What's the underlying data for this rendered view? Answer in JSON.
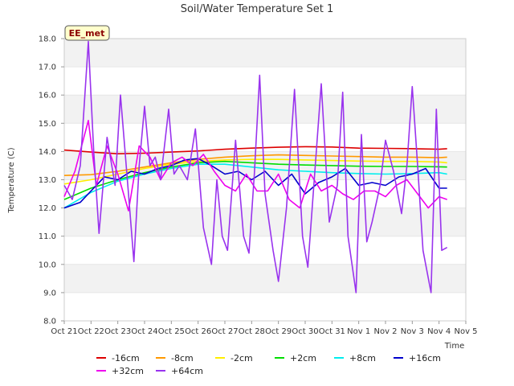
{
  "chart_data": {
    "type": "line",
    "title": "Soil/Water Temperature Set 1",
    "xlabel": "Time",
    "ylabel": "Temperature (C)",
    "badge": "EE_met",
    "x_ticks": [
      "Oct 21",
      "Oct 22",
      "Oct 23",
      "Oct 24",
      "Oct 25",
      "Oct 26",
      "Oct 27",
      "Oct 28",
      "Oct 29",
      "Oct 30",
      "Oct 31",
      "Nov 1",
      "Nov 2",
      "Nov 3",
      "Nov 4",
      "Nov 5"
    ],
    "y_ticks": [
      "8.0",
      "9.0",
      "10.0",
      "11.0",
      "12.0",
      "13.0",
      "14.0",
      "15.0",
      "16.0",
      "17.0",
      "18.0"
    ],
    "xlim": [
      0,
      15
    ],
    "ylim": [
      8,
      18
    ],
    "grid": "horizontal alternating bands",
    "legend_position": "bottom",
    "series": [
      {
        "name": "-16cm",
        "color": "#dd0000",
        "points": [
          [
            0,
            14.05
          ],
          [
            1,
            13.98
          ],
          [
            2,
            13.92
          ],
          [
            3,
            13.94
          ],
          [
            4,
            13.98
          ],
          [
            5,
            14.02
          ],
          [
            6,
            14.08
          ],
          [
            7,
            14.12
          ],
          [
            8,
            14.15
          ],
          [
            9,
            14.17
          ],
          [
            10,
            14.16
          ],
          [
            11,
            14.12
          ],
          [
            12,
            14.11
          ],
          [
            13,
            14.1
          ],
          [
            14,
            14.08
          ],
          [
            14.3,
            14.1
          ]
        ]
      },
      {
        "name": "-8cm",
        "color": "#ff9900",
        "points": [
          [
            0,
            13.15
          ],
          [
            1,
            13.18
          ],
          [
            2,
            13.3
          ],
          [
            3,
            13.45
          ],
          [
            4,
            13.6
          ],
          [
            5,
            13.72
          ],
          [
            6,
            13.8
          ],
          [
            7,
            13.85
          ],
          [
            8,
            13.88
          ],
          [
            9,
            13.86
          ],
          [
            10,
            13.84
          ],
          [
            11,
            13.82
          ],
          [
            12,
            13.8
          ],
          [
            13,
            13.8
          ],
          [
            14,
            13.78
          ],
          [
            14.3,
            13.8
          ]
        ]
      },
      {
        "name": "-2cm",
        "color": "#ffee00",
        "points": [
          [
            0,
            12.85
          ],
          [
            1,
            13.0
          ],
          [
            2,
            13.2
          ],
          [
            3,
            13.4
          ],
          [
            4,
            13.55
          ],
          [
            5,
            13.65
          ],
          [
            6,
            13.7
          ],
          [
            7,
            13.72
          ],
          [
            8,
            13.72
          ],
          [
            9,
            13.7
          ],
          [
            10,
            13.68
          ],
          [
            11,
            13.66
          ],
          [
            12,
            13.65
          ],
          [
            13,
            13.65
          ],
          [
            14,
            13.63
          ],
          [
            14.3,
            13.6
          ]
        ]
      },
      {
        "name": "+2cm",
        "color": "#00dd00",
        "points": [
          [
            0,
            12.3
          ],
          [
            1,
            12.7
          ],
          [
            2,
            13.0
          ],
          [
            3,
            13.25
          ],
          [
            4,
            13.45
          ],
          [
            5,
            13.6
          ],
          [
            6,
            13.65
          ],
          [
            7,
            13.6
          ],
          [
            8,
            13.55
          ],
          [
            9,
            13.52
          ],
          [
            10,
            13.5
          ],
          [
            11,
            13.48
          ],
          [
            12,
            13.47
          ],
          [
            13,
            13.47
          ],
          [
            14,
            13.46
          ],
          [
            14.3,
            13.45
          ]
        ]
      },
      {
        "name": "+8cm",
        "color": "#00eeee",
        "points": [
          [
            0,
            12.0
          ],
          [
            1,
            12.55
          ],
          [
            2,
            12.95
          ],
          [
            3,
            13.2
          ],
          [
            4,
            13.4
          ],
          [
            5,
            13.55
          ],
          [
            6,
            13.55
          ],
          [
            7,
            13.45
          ],
          [
            8,
            13.35
          ],
          [
            9,
            13.3
          ],
          [
            10,
            13.25
          ],
          [
            11,
            13.22
          ],
          [
            12,
            13.2
          ],
          [
            13,
            13.22
          ],
          [
            14,
            13.25
          ],
          [
            14.3,
            13.2
          ]
        ]
      },
      {
        "name": "+16cm",
        "color": "#0000cc",
        "points": [
          [
            0,
            12.0
          ],
          [
            0.6,
            12.2
          ],
          [
            1,
            12.6
          ],
          [
            1.5,
            13.1
          ],
          [
            2,
            13.0
          ],
          [
            2.5,
            13.3
          ],
          [
            3,
            13.2
          ],
          [
            3.5,
            13.4
          ],
          [
            4,
            13.5
          ],
          [
            4.5,
            13.7
          ],
          [
            5,
            13.75
          ],
          [
            5.5,
            13.5
          ],
          [
            6,
            13.2
          ],
          [
            6.5,
            13.3
          ],
          [
            7,
            13.0
          ],
          [
            7.5,
            13.3
          ],
          [
            8,
            12.8
          ],
          [
            8.5,
            13.2
          ],
          [
            9,
            12.5
          ],
          [
            9.5,
            12.9
          ],
          [
            10,
            13.1
          ],
          [
            10.5,
            13.4
          ],
          [
            11,
            12.8
          ],
          [
            11.5,
            12.9
          ],
          [
            12,
            12.8
          ],
          [
            12.5,
            13.1
          ],
          [
            13,
            13.2
          ],
          [
            13.5,
            13.4
          ],
          [
            14,
            12.7
          ],
          [
            14.3,
            12.7
          ]
        ]
      },
      {
        "name": "+32cm",
        "color": "#ee00ee",
        "points": [
          [
            0,
            12.4
          ],
          [
            0.4,
            13.3
          ],
          [
            0.9,
            15.1
          ],
          [
            1.2,
            12.8
          ],
          [
            1.6,
            14.2
          ],
          [
            2,
            13.2
          ],
          [
            2.4,
            11.9
          ],
          [
            2.8,
            14.2
          ],
          [
            3.2,
            13.8
          ],
          [
            3.6,
            13.0
          ],
          [
            4,
            13.6
          ],
          [
            4.4,
            13.8
          ],
          [
            4.8,
            13.5
          ],
          [
            5.2,
            13.9
          ],
          [
            5.6,
            13.3
          ],
          [
            6,
            12.8
          ],
          [
            6.4,
            12.6
          ],
          [
            6.8,
            13.2
          ],
          [
            7.2,
            12.6
          ],
          [
            7.6,
            12.6
          ],
          [
            8,
            13.2
          ],
          [
            8.4,
            12.3
          ],
          [
            8.8,
            12.0
          ],
          [
            9.2,
            13.2
          ],
          [
            9.6,
            12.6
          ],
          [
            10,
            12.8
          ],
          [
            10.4,
            12.5
          ],
          [
            10.8,
            12.3
          ],
          [
            11.2,
            12.6
          ],
          [
            11.6,
            12.6
          ],
          [
            12,
            12.4
          ],
          [
            12.4,
            12.8
          ],
          [
            12.8,
            13.0
          ],
          [
            13.2,
            12.5
          ],
          [
            13.6,
            12.0
          ],
          [
            14,
            12.4
          ],
          [
            14.3,
            12.3
          ]
        ]
      },
      {
        "name": "+64cm",
        "color": "#9933ee",
        "points": [
          [
            0,
            12.8
          ],
          [
            0.3,
            12.3
          ],
          [
            0.6,
            13.5
          ],
          [
            0.9,
            17.9
          ],
          [
            1.1,
            14.0
          ],
          [
            1.3,
            11.1
          ],
          [
            1.6,
            14.5
          ],
          [
            1.9,
            12.8
          ],
          [
            2.1,
            16.0
          ],
          [
            2.4,
            12.5
          ],
          [
            2.6,
            10.1
          ],
          [
            2.8,
            13.5
          ],
          [
            3.0,
            15.6
          ],
          [
            3.2,
            13.5
          ],
          [
            3.4,
            13.8
          ],
          [
            3.6,
            13.0
          ],
          [
            3.9,
            15.5
          ],
          [
            4.1,
            13.2
          ],
          [
            4.3,
            13.5
          ],
          [
            4.6,
            13.0
          ],
          [
            4.9,
            14.8
          ],
          [
            5.2,
            11.3
          ],
          [
            5.5,
            10.0
          ],
          [
            5.7,
            13.0
          ],
          [
            5.9,
            11.0
          ],
          [
            6.1,
            10.5
          ],
          [
            6.4,
            14.4
          ],
          [
            6.7,
            11.0
          ],
          [
            6.9,
            10.4
          ],
          [
            7.1,
            13.2
          ],
          [
            7.3,
            16.7
          ],
          [
            7.5,
            12.5
          ],
          [
            7.8,
            10.5
          ],
          [
            8.0,
            9.4
          ],
          [
            8.3,
            12.0
          ],
          [
            8.6,
            16.2
          ],
          [
            8.9,
            11.0
          ],
          [
            9.1,
            9.9
          ],
          [
            9.3,
            12.5
          ],
          [
            9.6,
            16.4
          ],
          [
            9.9,
            11.5
          ],
          [
            10.2,
            12.8
          ],
          [
            10.4,
            16.1
          ],
          [
            10.6,
            11.0
          ],
          [
            10.9,
            9.0
          ],
          [
            11.1,
            14.6
          ],
          [
            11.3,
            10.8
          ],
          [
            11.5,
            11.5
          ],
          [
            11.8,
            12.8
          ],
          [
            12.0,
            14.4
          ],
          [
            12.3,
            13.3
          ],
          [
            12.6,
            11.8
          ],
          [
            12.8,
            13.5
          ],
          [
            13.0,
            16.3
          ],
          [
            13.2,
            13.5
          ],
          [
            13.4,
            10.5
          ],
          [
            13.7,
            9.0
          ],
          [
            13.9,
            15.5
          ],
          [
            14.1,
            10.5
          ],
          [
            14.3,
            10.6
          ]
        ]
      }
    ]
  }
}
